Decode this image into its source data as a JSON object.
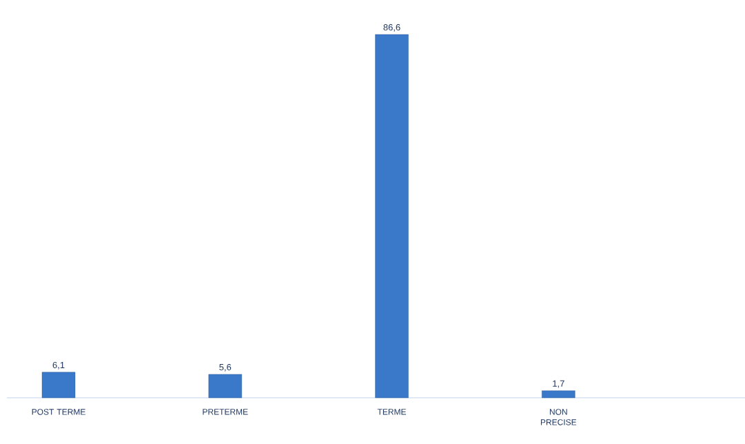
{
  "chart_data": {
    "type": "bar",
    "categories": [
      "POST TERME",
      "PRETERME",
      "TERME",
      "NON PRECISE"
    ],
    "values": [
      6.1,
      5.6,
      86.6,
      1.7
    ],
    "value_labels": [
      "6,1",
      "5,6",
      "86,6",
      "1,7"
    ],
    "color": "#3a78c9"
  }
}
